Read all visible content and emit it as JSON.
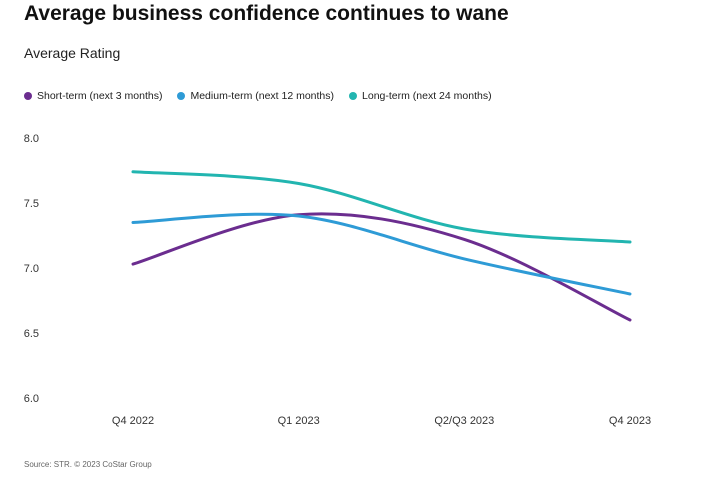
{
  "header": {
    "title": "Average business confidence continues to wane",
    "subtitle": "Average Rating"
  },
  "footer": {
    "source": "Source: STR. © 2023 CoStar Group"
  },
  "legend": [
    {
      "label": "Short-term (next 3 months)",
      "color": "#6b2d8f"
    },
    {
      "label": "Medium-term (next 12 months)",
      "color": "#2e9bd6"
    },
    {
      "label": "Long-term (next 24 months)",
      "color": "#22b5b0"
    }
  ],
  "chart_data": {
    "type": "line",
    "categories": [
      "Q4 2022",
      "Q1 2023",
      "Q2/Q3 2023",
      "Q4 2023"
    ],
    "series": [
      {
        "name": "Short-term (next 3 months)",
        "color": "#6b2d8f",
        "values": [
          7.03,
          7.41,
          7.22,
          6.6
        ]
      },
      {
        "name": "Medium-term (next 12 months)",
        "color": "#2e9bd6",
        "values": [
          7.35,
          7.4,
          7.07,
          6.8
        ]
      },
      {
        "name": "Long-term (next 24 months)",
        "color": "#22b5b0",
        "values": [
          7.74,
          7.65,
          7.3,
          7.2
        ]
      }
    ],
    "ylim": [
      6.0,
      8.0
    ],
    "yticks": [
      "8.0",
      "7.5",
      "7.0",
      "6.5",
      "6.0"
    ],
    "grid": false,
    "legend_position": "top-left",
    "title": "Average business confidence continues to wane",
    "ylabel": "Average Rating"
  }
}
